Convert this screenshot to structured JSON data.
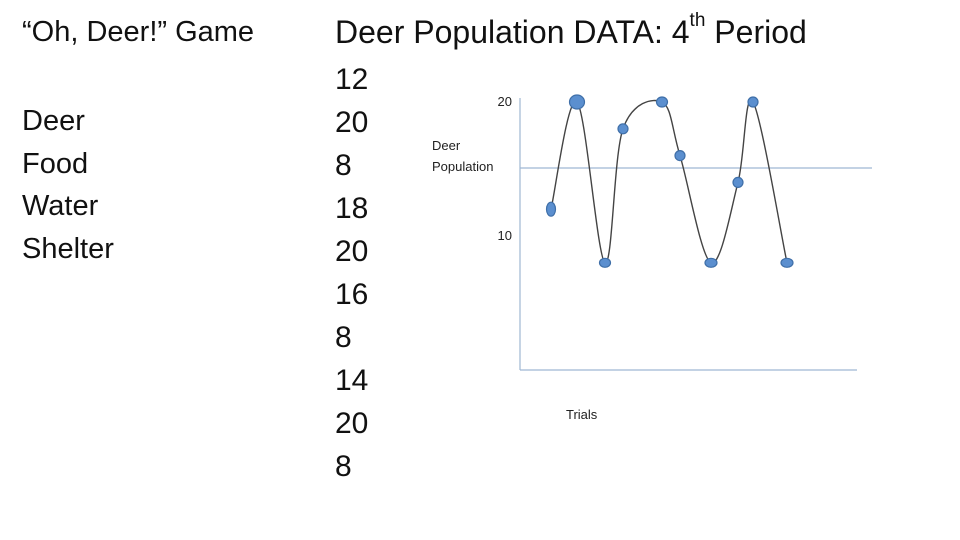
{
  "left": {
    "title": "“Oh, Deer!” Game",
    "items": [
      "Deer",
      "Food",
      "Water",
      "Shelter"
    ]
  },
  "main": {
    "title_prefix": "Deer Population DATA: 4",
    "title_sup": "th",
    "title_suffix": " Period",
    "values": [
      "12",
      "20",
      "8",
      "18",
      "20",
      "16",
      "8",
      "14",
      "20",
      "8"
    ]
  },
  "colors": {
    "marker_fill": "#5b8fcf",
    "marker_stroke": "#3f6fa8",
    "axis": "#9fb7d3",
    "curve": "#444444"
  },
  "chart_data": {
    "type": "line",
    "ylabel": "Deer Population",
    "xlabel": "Trials",
    "y_ticks": [
      "20",
      "10"
    ],
    "y_reference_line": 15,
    "x": [
      1,
      2,
      3,
      4,
      5,
      6,
      7,
      8,
      9,
      10
    ],
    "values": [
      12,
      20,
      8,
      18,
      20,
      16,
      8,
      14,
      20,
      8
    ],
    "ylim": [
      0,
      22
    ],
    "grid": false
  }
}
